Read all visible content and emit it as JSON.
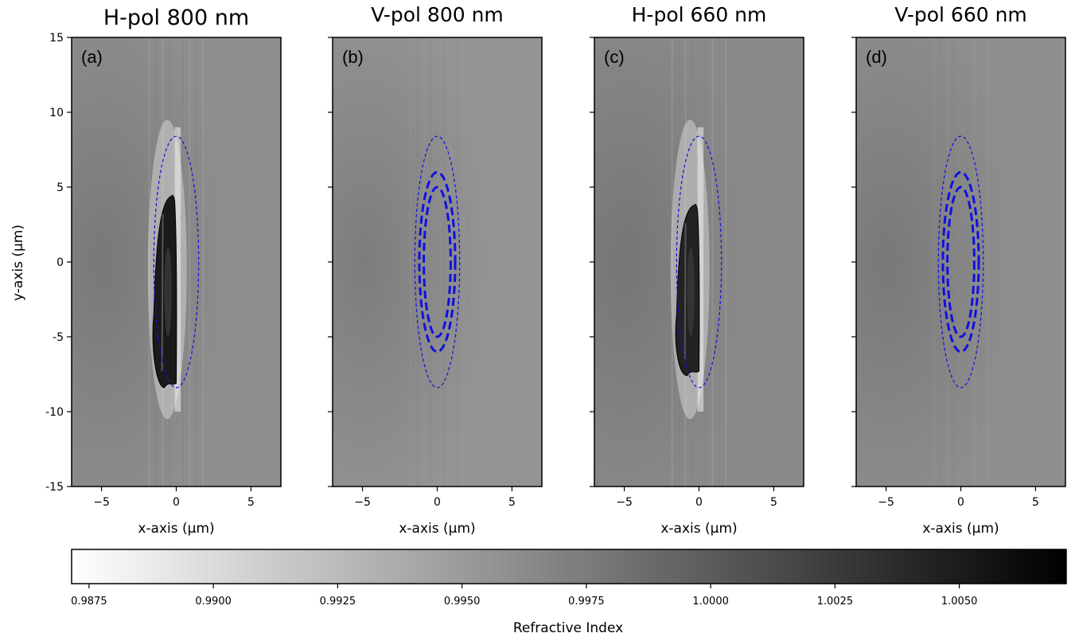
{
  "chart_data": {
    "type": "heatmap",
    "colormap": "gray_r",
    "colors": {
      "contour": "#1010e0",
      "frame": "#000000"
    },
    "xlim": [
      -7,
      7
    ],
    "ylim": [
      -15,
      15
    ],
    "xticks": [
      -5,
      0,
      5
    ],
    "yticks": [
      15,
      10,
      5,
      0,
      -5,
      -10,
      -15
    ],
    "xlabel": "x-axis (µm)",
    "ylabel": "y-axis (µm)",
    "ytick_labels": [
      "15",
      "10",
      "5",
      "0",
      "-5",
      "-10",
      "-15"
    ],
    "xtick_labels": [
      "−5",
      "0",
      "5"
    ],
    "panels": [
      {
        "title": "H-pol 800 nm",
        "label": "(a)",
        "has_dark_feature": true,
        "feature_color": "#1a1a1a",
        "background_color": "#8e8e8e",
        "contours": [
          {
            "rx": 1.5,
            "ry": 8.4,
            "style": "thin"
          }
        ]
      },
      {
        "title": "V-pol 800 nm",
        "label": "(b)",
        "has_dark_feature": false,
        "background_color": "#949494",
        "contours": [
          {
            "rx": 1.5,
            "ry": 8.4,
            "style": "thin"
          },
          {
            "rx": 1.2,
            "ry": 6.0,
            "style": "thick"
          },
          {
            "rx": 0.9,
            "ry": 5.0,
            "style": "thick"
          }
        ]
      },
      {
        "title": "H-pol 660 nm",
        "label": "(c)",
        "has_dark_feature": true,
        "feature_color": "#222222",
        "background_color": "#8a8a8a",
        "contours": [
          {
            "rx": 1.5,
            "ry": 8.4,
            "style": "thin"
          }
        ]
      },
      {
        "title": "V-pol 660 nm",
        "label": "(d)",
        "has_dark_feature": false,
        "background_color": "#8e8e8e",
        "contours": [
          {
            "rx": 1.5,
            "ry": 8.4,
            "style": "thin"
          },
          {
            "rx": 1.2,
            "ry": 6.0,
            "style": "thick"
          },
          {
            "rx": 0.9,
            "ry": 5.0,
            "style": "thick"
          }
        ]
      }
    ],
    "colorbar": {
      "label": "Refractive Index",
      "range": [
        0.98715,
        1.00715
      ],
      "ticks": [
        0.9875,
        0.99,
        0.9925,
        0.995,
        0.9975,
        1.0,
        1.0025,
        1.005
      ],
      "tick_labels": [
        "0.9875",
        "0.9900",
        "0.9925",
        "0.9950",
        "0.9975",
        "1.0000",
        "1.0025",
        "1.0050"
      ],
      "orientation": "horizontal"
    }
  }
}
